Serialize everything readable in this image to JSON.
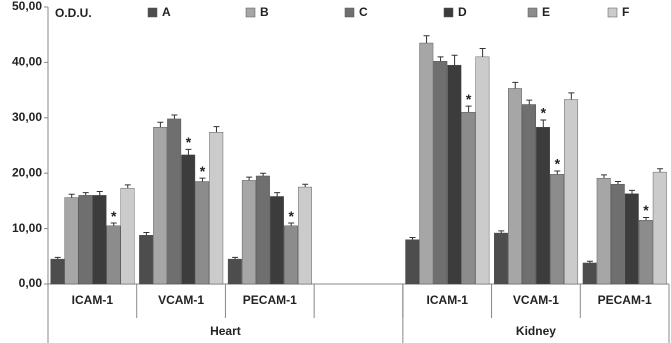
{
  "chart_data": {
    "type": "bar",
    "y_label": "O.D.U.",
    "groups": [
      {
        "name": "Heart",
        "categories": [
          "ICAM-1",
          "VCAM-1",
          "PECAM-1",
          null
        ]
      },
      {
        "name": "Kidney",
        "categories": [
          "ICAM-1",
          "VCAM-1",
          "PECAM-1"
        ]
      }
    ],
    "series": [
      {
        "name": "A",
        "color": "#4d4d4d",
        "values": [
          4.5,
          8.8,
          4.5,
          null,
          8.0,
          9.2,
          3.8
        ],
        "errors": [
          0.3,
          0.5,
          0.3,
          null,
          0.4,
          0.4,
          0.3
        ],
        "marks": [
          null,
          null,
          null,
          null,
          null,
          null,
          null
        ]
      },
      {
        "name": "B",
        "color": "#a6a6a6",
        "values": [
          15.6,
          28.3,
          18.7,
          null,
          43.5,
          35.3,
          19.1
        ],
        "errors": [
          0.6,
          0.9,
          0.6,
          null,
          1.3,
          1.1,
          0.6
        ],
        "marks": [
          null,
          null,
          null,
          null,
          null,
          null,
          null
        ]
      },
      {
        "name": "C",
        "color": "#6f6f6f",
        "values": [
          16.0,
          29.8,
          19.5,
          null,
          40.2,
          32.4,
          18.0
        ],
        "errors": [
          0.5,
          0.7,
          0.5,
          null,
          0.8,
          0.8,
          0.5
        ],
        "marks": [
          null,
          null,
          null,
          null,
          null,
          null,
          null
        ]
      },
      {
        "name": "D",
        "color": "#3c3c3c",
        "values": [
          16.0,
          23.3,
          15.8,
          null,
          39.5,
          28.3,
          16.3
        ],
        "errors": [
          0.7,
          1.0,
          0.7,
          null,
          1.8,
          1.3,
          0.6
        ],
        "marks": [
          null,
          "*",
          null,
          null,
          null,
          "*",
          null
        ]
      },
      {
        "name": "E",
        "color": "#8c8c8c",
        "values": [
          10.5,
          18.5,
          10.5,
          null,
          31.0,
          19.8,
          11.5
        ],
        "errors": [
          0.5,
          0.6,
          0.5,
          null,
          1.1,
          0.6,
          0.5
        ],
        "marks": [
          "*",
          "*",
          "*",
          null,
          "*",
          "*",
          "*"
        ]
      },
      {
        "name": "F",
        "color": "#cbcbcb",
        "values": [
          17.3,
          27.4,
          17.5,
          null,
          41.0,
          33.3,
          20.2
        ],
        "errors": [
          0.6,
          1.0,
          0.5,
          null,
          1.5,
          1.2,
          0.6
        ],
        "marks": [
          null,
          null,
          null,
          null,
          null,
          null,
          null
        ]
      }
    ],
    "ylim": [
      0,
      50
    ],
    "yticks": [
      {
        "value": 0,
        "label": "0,00"
      },
      {
        "value": 10,
        "label": "10,00"
      },
      {
        "value": 20,
        "label": "20,00"
      },
      {
        "value": 30,
        "label": "30,00"
      },
      {
        "value": 40,
        "label": "40,00"
      },
      {
        "value": 50,
        "label": "50,00"
      }
    ],
    "grid": false
  }
}
